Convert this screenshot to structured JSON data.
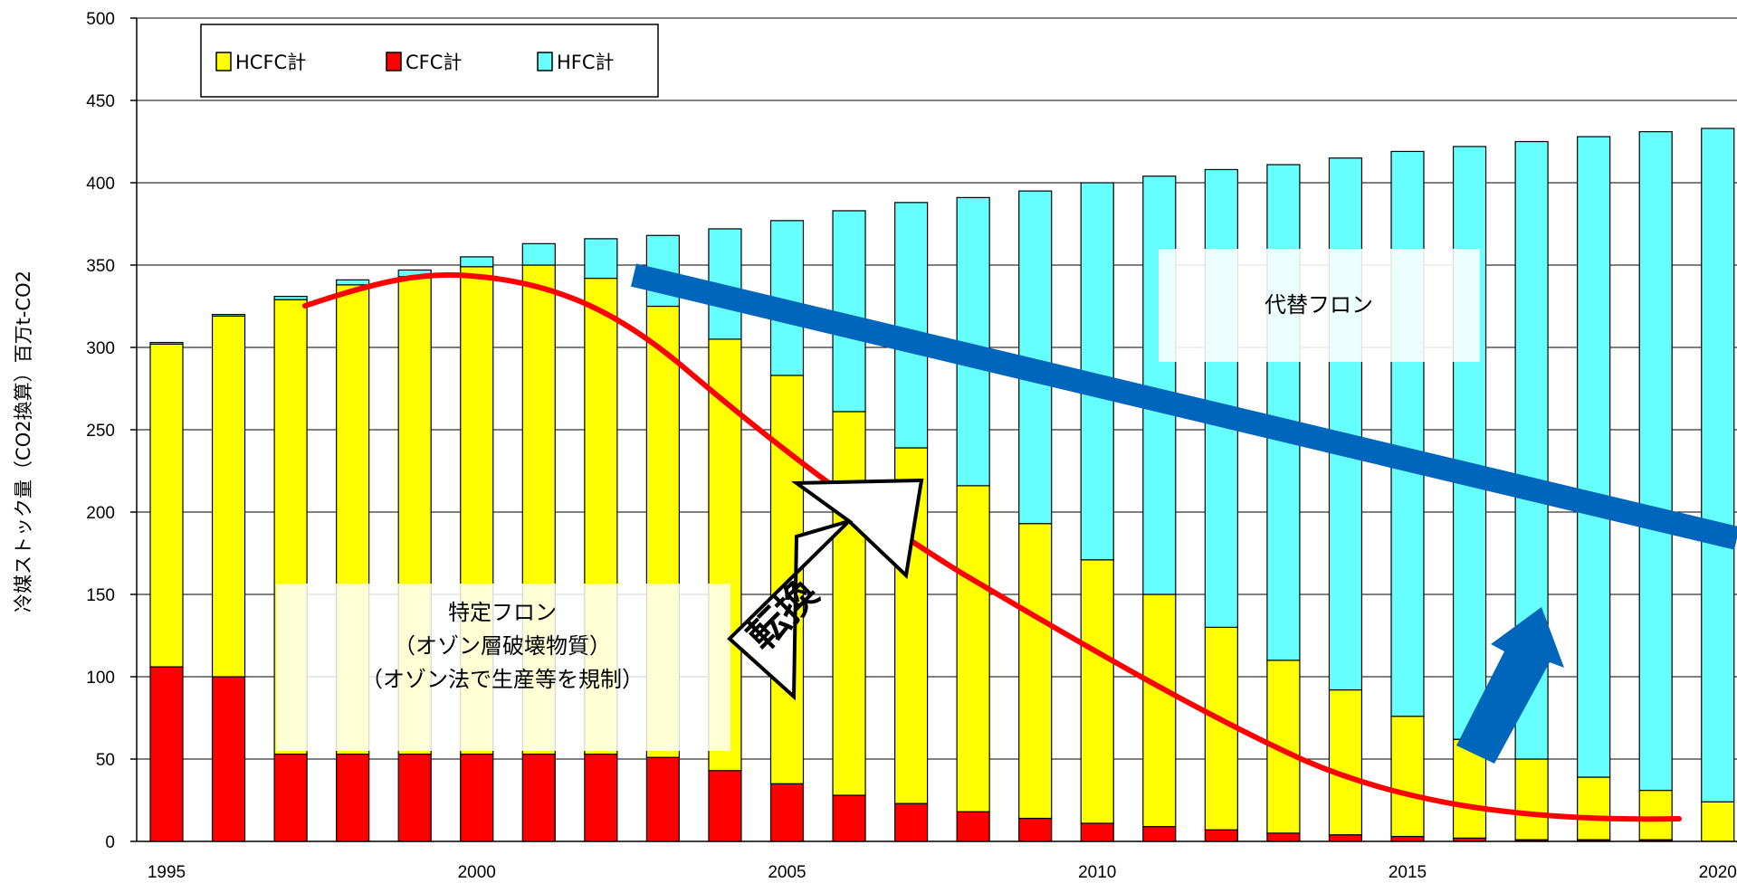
{
  "chart_data": {
    "type": "bar",
    "stacked": true,
    "ylabel": "冷媒ストック量（CO2換算）百万t-CO2",
    "ylim": [
      0,
      500
    ],
    "yticks": [
      0,
      50,
      100,
      150,
      200,
      250,
      300,
      350,
      400,
      450,
      500
    ],
    "xticks": [
      "1995",
      "2000",
      "2005",
      "2010",
      "2015",
      "2020"
    ],
    "categories": [
      1995,
      1996,
      1997,
      1998,
      1999,
      2000,
      2001,
      2002,
      2003,
      2004,
      2005,
      2006,
      2007,
      2008,
      2009,
      2010,
      2011,
      2012,
      2013,
      2014,
      2015,
      2016,
      2017,
      2018,
      2019,
      2020
    ],
    "grid": true,
    "legend_position": "top-left",
    "series": [
      {
        "name": "CFC計",
        "color": "#ff0000",
        "values": [
          106,
          100,
          53,
          53,
          53,
          53,
          53,
          53,
          51,
          43,
          35,
          28,
          23,
          18,
          14,
          11,
          9,
          7,
          5,
          4,
          3,
          2,
          1,
          1,
          1,
          0
        ]
      },
      {
        "name": "HCFC計",
        "color": "#ffff00",
        "values": [
          196,
          219,
          276,
          285,
          290,
          296,
          297,
          289,
          274,
          262,
          248,
          233,
          216,
          198,
          179,
          160,
          141,
          123,
          105,
          88,
          73,
          60,
          49,
          38,
          30,
          24
        ]
      },
      {
        "name": "HFC計",
        "color": "#66ffff",
        "values": [
          1,
          1,
          2,
          3,
          4,
          6,
          13,
          24,
          43,
          67,
          94,
          122,
          149,
          175,
          202,
          229,
          254,
          278,
          301,
          323,
          343,
          360,
          375,
          389,
          400,
          409
        ]
      }
    ],
    "legend_order": [
      "HCFC計",
      "CFC計",
      "HFC計"
    ],
    "annotations": {
      "alternative_label": "代替フロン",
      "specified_line1": "特定フロン",
      "specified_line2": "（オゾン層破壊物質）",
      "specified_line3": "（オゾン法で生産等を規制）",
      "conversion_label": "転換"
    },
    "colors": {
      "trend_curve": "#ff0000",
      "trend_band": "#0066bb",
      "arrow_up": "#0066bb"
    }
  }
}
